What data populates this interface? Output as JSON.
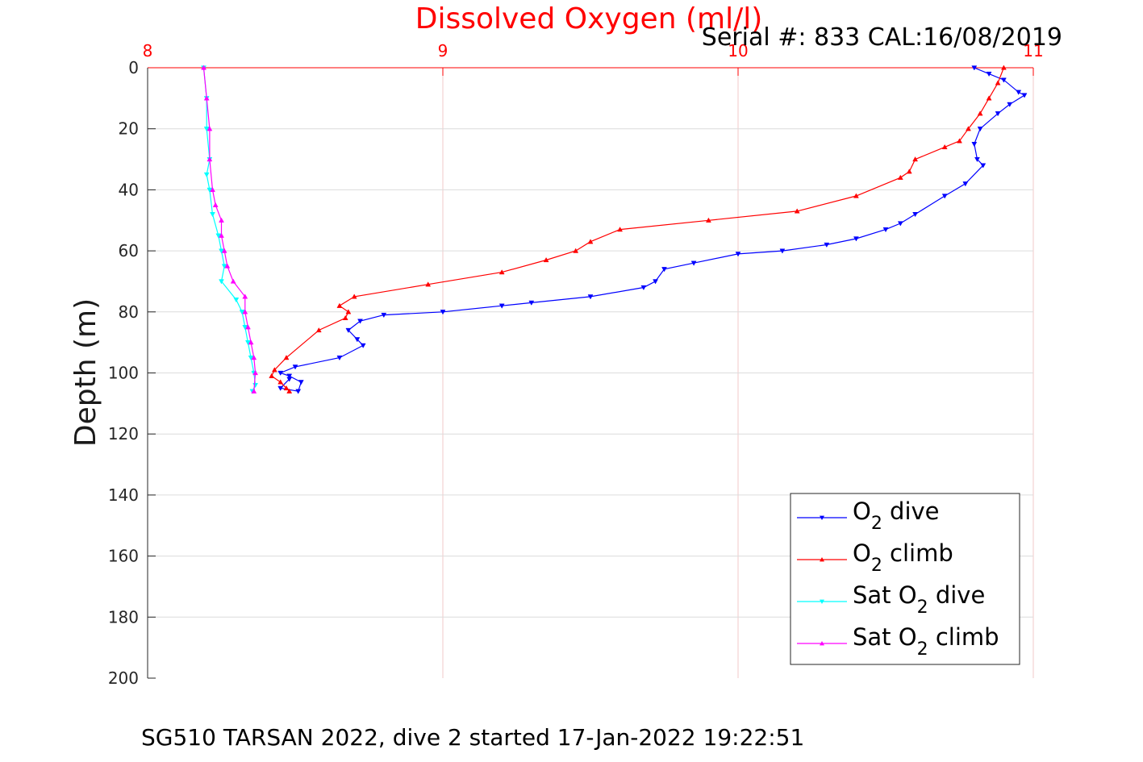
{
  "chart_data": {
    "type": "line",
    "title": "Dissolved Oxygen (ml/l)",
    "title_color": "#ff0000",
    "subtitle": "Serial #: 833  CAL:16/08/2019",
    "ylabel": "Depth (m)",
    "xlim": [
      8,
      11
    ],
    "ylim": [
      0,
      200
    ],
    "y_reversed": true,
    "x_axis_position": "top",
    "x_axis_color": "#ff0000",
    "x_ticks": [
      "8",
      "9",
      "10",
      "11"
    ],
    "y_ticks": [
      "0",
      "20",
      "40",
      "60",
      "80",
      "100",
      "120",
      "140",
      "160",
      "180",
      "200"
    ],
    "grid": true,
    "legend_position": "bottom-right",
    "series": [
      {
        "name": "O₂ dive",
        "legend_base": "O",
        "legend_sub": "2",
        "legend_suffix": " dive",
        "color": "#0000ff",
        "marker": "triangle-down",
        "x": [
          10.8,
          10.85,
          10.9,
          10.95,
          10.97,
          10.92,
          10.88,
          10.82,
          10.8,
          10.81,
          10.83,
          10.77,
          10.7,
          10.6,
          10.55,
          10.5,
          10.4,
          10.3,
          10.15,
          10.0,
          9.85,
          9.75,
          9.72,
          9.68,
          9.5,
          9.3,
          9.2,
          9.0,
          8.8,
          8.72,
          8.68,
          8.71,
          8.73,
          8.65,
          8.5,
          8.45,
          8.48,
          8.52,
          8.51,
          8.45,
          8.48
        ],
        "y": [
          0,
          2,
          4,
          8,
          9,
          12,
          15,
          20,
          25,
          30,
          32,
          38,
          42,
          48,
          51,
          53,
          56,
          58,
          60,
          61,
          64,
          66,
          70,
          72,
          75,
          77,
          78,
          80,
          81,
          83,
          86,
          89,
          91,
          95,
          98,
          100,
          101,
          103,
          106,
          105,
          102
        ],
        "marker_every": 1
      },
      {
        "name": "O₂ climb",
        "legend_base": "O",
        "legend_sub": "2",
        "legend_suffix": " climb",
        "color": "#ff0000",
        "marker": "triangle-up",
        "x": [
          10.9,
          10.88,
          10.85,
          10.82,
          10.78,
          10.75,
          10.7,
          10.6,
          10.58,
          10.55,
          10.4,
          10.2,
          9.9,
          9.6,
          9.5,
          9.45,
          9.35,
          9.2,
          8.95,
          8.7,
          8.65,
          8.68,
          8.67,
          8.58,
          8.47,
          8.43,
          8.42,
          8.45,
          8.47,
          8.48
        ],
        "y": [
          0,
          5,
          10,
          15,
          20,
          24,
          26,
          30,
          34,
          36,
          42,
          47,
          50,
          53,
          57,
          60,
          63,
          67,
          71,
          75,
          78,
          80,
          82,
          86,
          95,
          99,
          101,
          103,
          105,
          106
        ],
        "marker_every": 1
      },
      {
        "name": "Sat O₂ dive",
        "legend_base": "Sat O",
        "legend_sub": "2",
        "legend_suffix": " dive",
        "color": "#00ffff",
        "marker": "triangle-down",
        "x": [
          8.19,
          8.2,
          8.2,
          8.21,
          8.2,
          8.21,
          8.22,
          8.24,
          8.25,
          8.26,
          8.25,
          8.3,
          8.32,
          8.33,
          8.34,
          8.35,
          8.36,
          8.365,
          8.355
        ],
        "y": [
          0,
          10,
          20,
          30,
          35,
          40,
          48,
          55,
          60,
          65,
          70,
          76,
          80,
          85,
          90,
          95,
          100,
          104,
          106
        ],
        "marker_every": 1
      },
      {
        "name": "Sat O₂ climb",
        "legend_base": "Sat O",
        "legend_sub": "2",
        "legend_suffix": " climb",
        "color": "#ff00ff",
        "marker": "triangle-up",
        "x": [
          8.19,
          8.2,
          8.21,
          8.21,
          8.22,
          8.23,
          8.25,
          8.25,
          8.26,
          8.27,
          8.29,
          8.33,
          8.33,
          8.34,
          8.35,
          8.36,
          8.365,
          8.36
        ],
        "y": [
          0,
          10,
          20,
          30,
          40,
          45,
          50,
          55,
          60,
          65,
          70,
          75,
          80,
          85,
          90,
          95,
          100,
          106
        ],
        "marker_every": 1
      }
    ]
  },
  "caption": "SG510 TARSAN 2022, dive 2 started 17-Jan-2022 19:22:51"
}
